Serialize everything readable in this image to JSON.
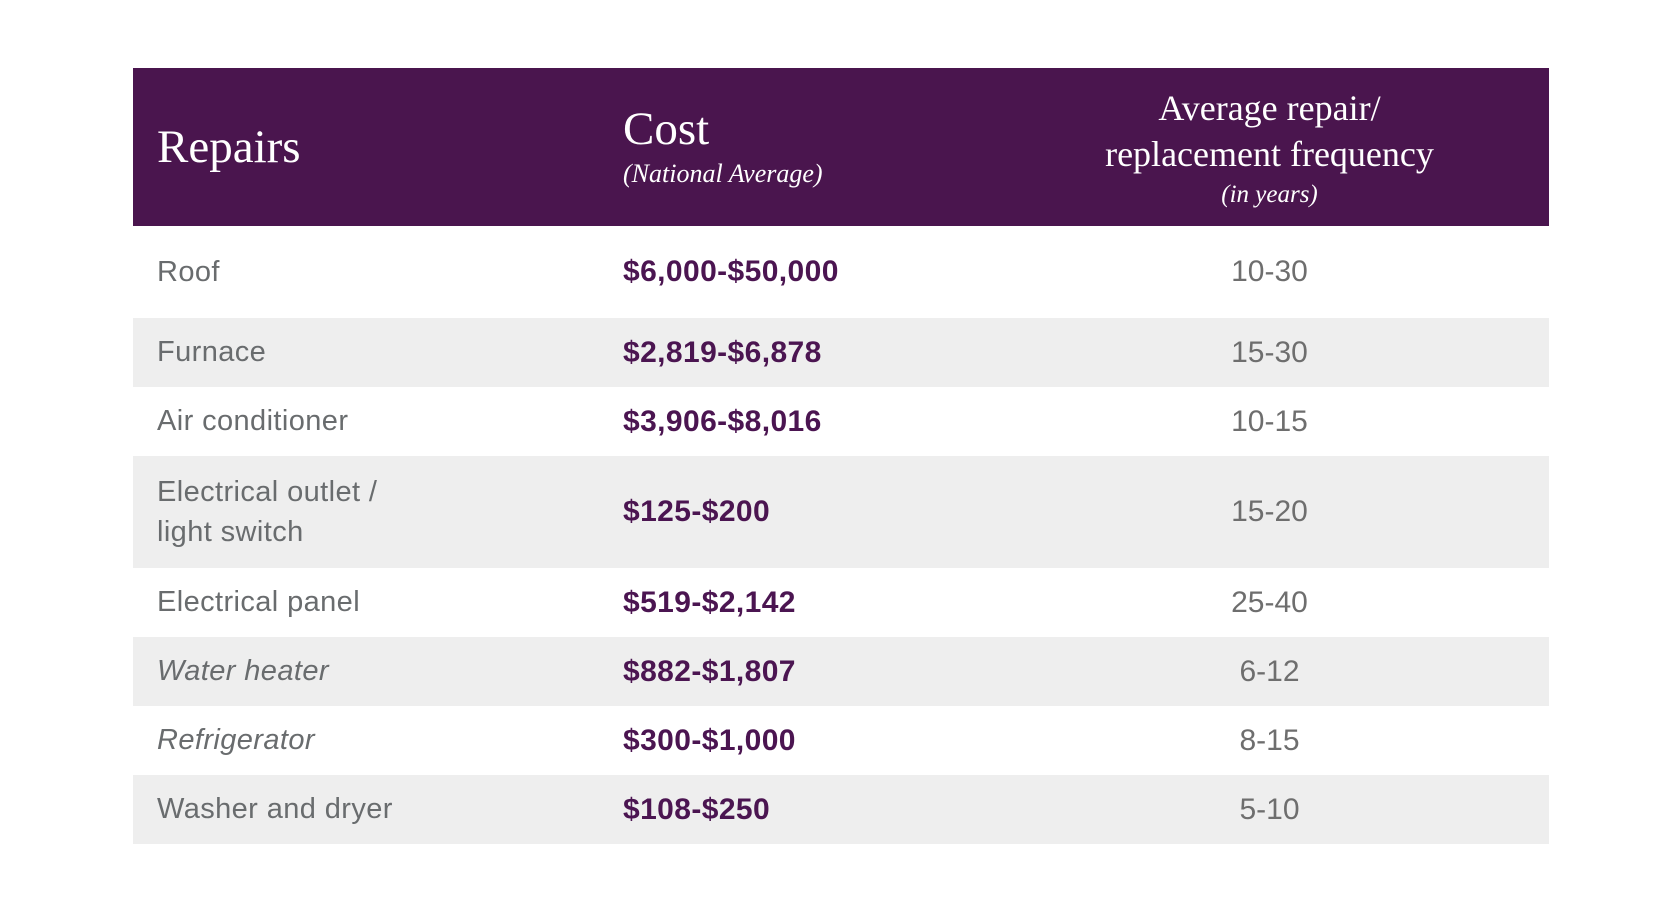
{
  "colors": {
    "header_bg": "#4a154e",
    "header_text": "#ffffff",
    "cost_text": "#4b1551",
    "label_text": "#696c6e",
    "frequency_text": "#6e6e6e",
    "shaded_row_bg": "#eeeeee",
    "page_bg": "#ffffff"
  },
  "table": {
    "header": {
      "col1_title": "Repairs",
      "col2_title": "Cost",
      "col2_subtitle": "(National Average)",
      "col3_title_line1": "Average repair/",
      "col3_title_line2": "replacement frequency",
      "col3_subtitle": "(in years)"
    },
    "rows": [
      {
        "repair": "Roof",
        "cost": "$6,000-$50,000",
        "frequency": "10-30",
        "italic": false,
        "shaded": false
      },
      {
        "repair": "Furnace",
        "cost": "$2,819-$6,878",
        "frequency": "15-30",
        "italic": false,
        "shaded": true
      },
      {
        "repair": "Air conditioner",
        "cost": "$3,906-$8,016",
        "frequency": "10-15",
        "italic": false,
        "shaded": false
      },
      {
        "repair": "Electrical outlet /",
        "repair_line2": "light switch",
        "cost": "$125-$200",
        "frequency": "15-20",
        "italic": false,
        "shaded": true
      },
      {
        "repair": "Electrical panel",
        "cost": "$519-$2,142",
        "frequency": "25-40",
        "italic": false,
        "shaded": false
      },
      {
        "repair": "Water heater",
        "cost": "$882-$1,807",
        "frequency": "6-12",
        "italic": true,
        "shaded": true
      },
      {
        "repair": "Refrigerator",
        "cost": "$300-$1,000",
        "frequency": "8-15",
        "italic": true,
        "shaded": false
      },
      {
        "repair": "Washer and dryer",
        "cost": "$108-$250",
        "frequency": "5-10",
        "italic": false,
        "shaded": true
      }
    ]
  },
  "chart_data": {
    "type": "table",
    "columns": [
      "Repairs",
      "Cost (National Average)",
      "Average repair/replacement frequency (in years)"
    ],
    "rows": [
      [
        "Roof",
        "$6,000-$50,000",
        "10-30"
      ],
      [
        "Furnace",
        "$2,819-$6,878",
        "15-30"
      ],
      [
        "Air conditioner",
        "$3,906-$8,016",
        "10-15"
      ],
      [
        "Electrical outlet / light switch",
        "$125-$200",
        "15-20"
      ],
      [
        "Electrical panel",
        "$519-$2,142",
        "25-40"
      ],
      [
        "Water heater",
        "$882-$1,807",
        "6-12"
      ],
      [
        "Refrigerator",
        "$300-$1,000",
        "8-15"
      ],
      [
        "Washer and dryer",
        "$108-$250",
        "5-10"
      ]
    ]
  }
}
